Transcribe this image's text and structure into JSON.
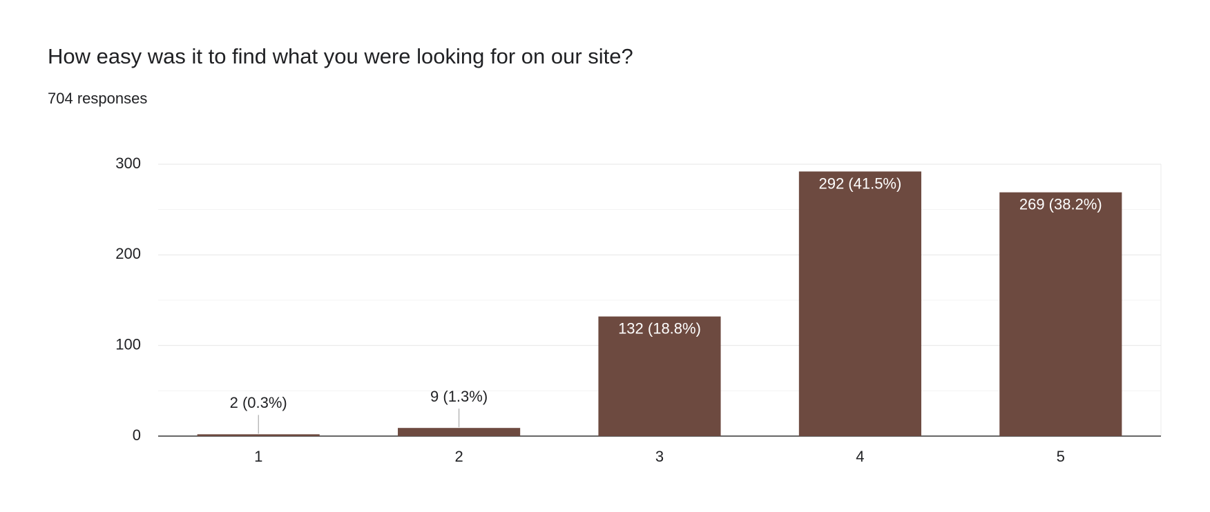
{
  "chart_data": {
    "type": "bar",
    "title": "How easy was it to find what you were looking for on our site?",
    "subtitle": "704 responses",
    "categories": [
      "1",
      "2",
      "3",
      "4",
      "5"
    ],
    "values": [
      2,
      9,
      132,
      292,
      269
    ],
    "value_labels": [
      "2 (0.3%)",
      "9 (1.3%)",
      "132 (18.8%)",
      "292 (41.5%)",
      "269 (38.2%)"
    ],
    "color": "#6d4a40",
    "ylim": [
      0,
      300
    ],
    "yticks": [
      0,
      100,
      200,
      300
    ],
    "minor_yticks": [
      50,
      150,
      250
    ],
    "grid": true
  }
}
